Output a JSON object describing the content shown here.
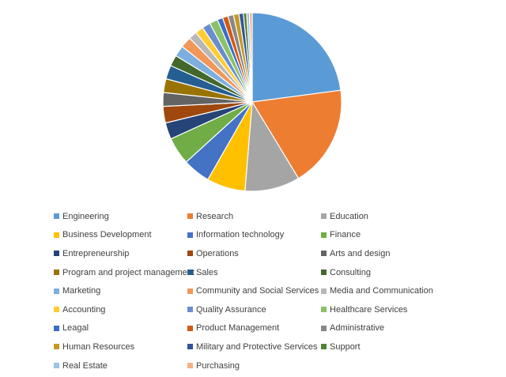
{
  "chart_data": {
    "type": "pie",
    "title": "",
    "legend_position": "bottom",
    "slices": [
      {
        "label": "Engineering",
        "value": 23.0,
        "color": "#5B9BD5"
      },
      {
        "label": "Research",
        "value": 18.5,
        "color": "#ED7D31"
      },
      {
        "label": "Education",
        "value": 10.0,
        "color": "#A5A5A5"
      },
      {
        "label": "Business Development",
        "value": 7.0,
        "color": "#FFC000"
      },
      {
        "label": "Information technology",
        "value": 5.0,
        "color": "#4472C4"
      },
      {
        "label": "Finance",
        "value": 5.0,
        "color": "#70AD47"
      },
      {
        "label": "Entrepreneurship",
        "value": 3.0,
        "color": "#264478"
      },
      {
        "label": "Operations",
        "value": 3.0,
        "color": "#9E480E"
      },
      {
        "label": "Arts and design",
        "value": 2.5,
        "color": "#636363"
      },
      {
        "label": "Program and project management",
        "value": 2.5,
        "color": "#997300"
      },
      {
        "label": "Sales",
        "value": 2.5,
        "color": "#255E91"
      },
      {
        "label": "Consulting",
        "value": 2.0,
        "color": "#43682B"
      },
      {
        "label": "Marketing",
        "value": 2.0,
        "color": "#7CAFDD"
      },
      {
        "label": "Community and Social Services",
        "value": 2.0,
        "color": "#F1975A"
      },
      {
        "label": "Media and Communication",
        "value": 1.5,
        "color": "#B7B7B7"
      },
      {
        "label": "Accounting",
        "value": 1.5,
        "color": "#FFCD33"
      },
      {
        "label": "Quality Assurance",
        "value": 1.5,
        "color": "#698ED0"
      },
      {
        "label": "Healthcare Services",
        "value": 1.5,
        "color": "#8CC168"
      },
      {
        "label": "Leagal",
        "value": 1.0,
        "color": "#3A6FC8"
      },
      {
        "label": "Product Management",
        "value": 1.0,
        "color": "#D25A12"
      },
      {
        "label": "Administrative",
        "value": 1.0,
        "color": "#878787"
      },
      {
        "label": "Human Resources",
        "value": 1.0,
        "color": "#C49A26"
      },
      {
        "label": "Military and Protective Services",
        "value": 0.8,
        "color": "#2F5597"
      },
      {
        "label": "Support",
        "value": 0.6,
        "color": "#548235"
      },
      {
        "label": "Real Estate",
        "value": 0.5,
        "color": "#9DC3E6"
      },
      {
        "label": "Purchasing",
        "value": 0.5,
        "color": "#F4B183"
      }
    ]
  }
}
